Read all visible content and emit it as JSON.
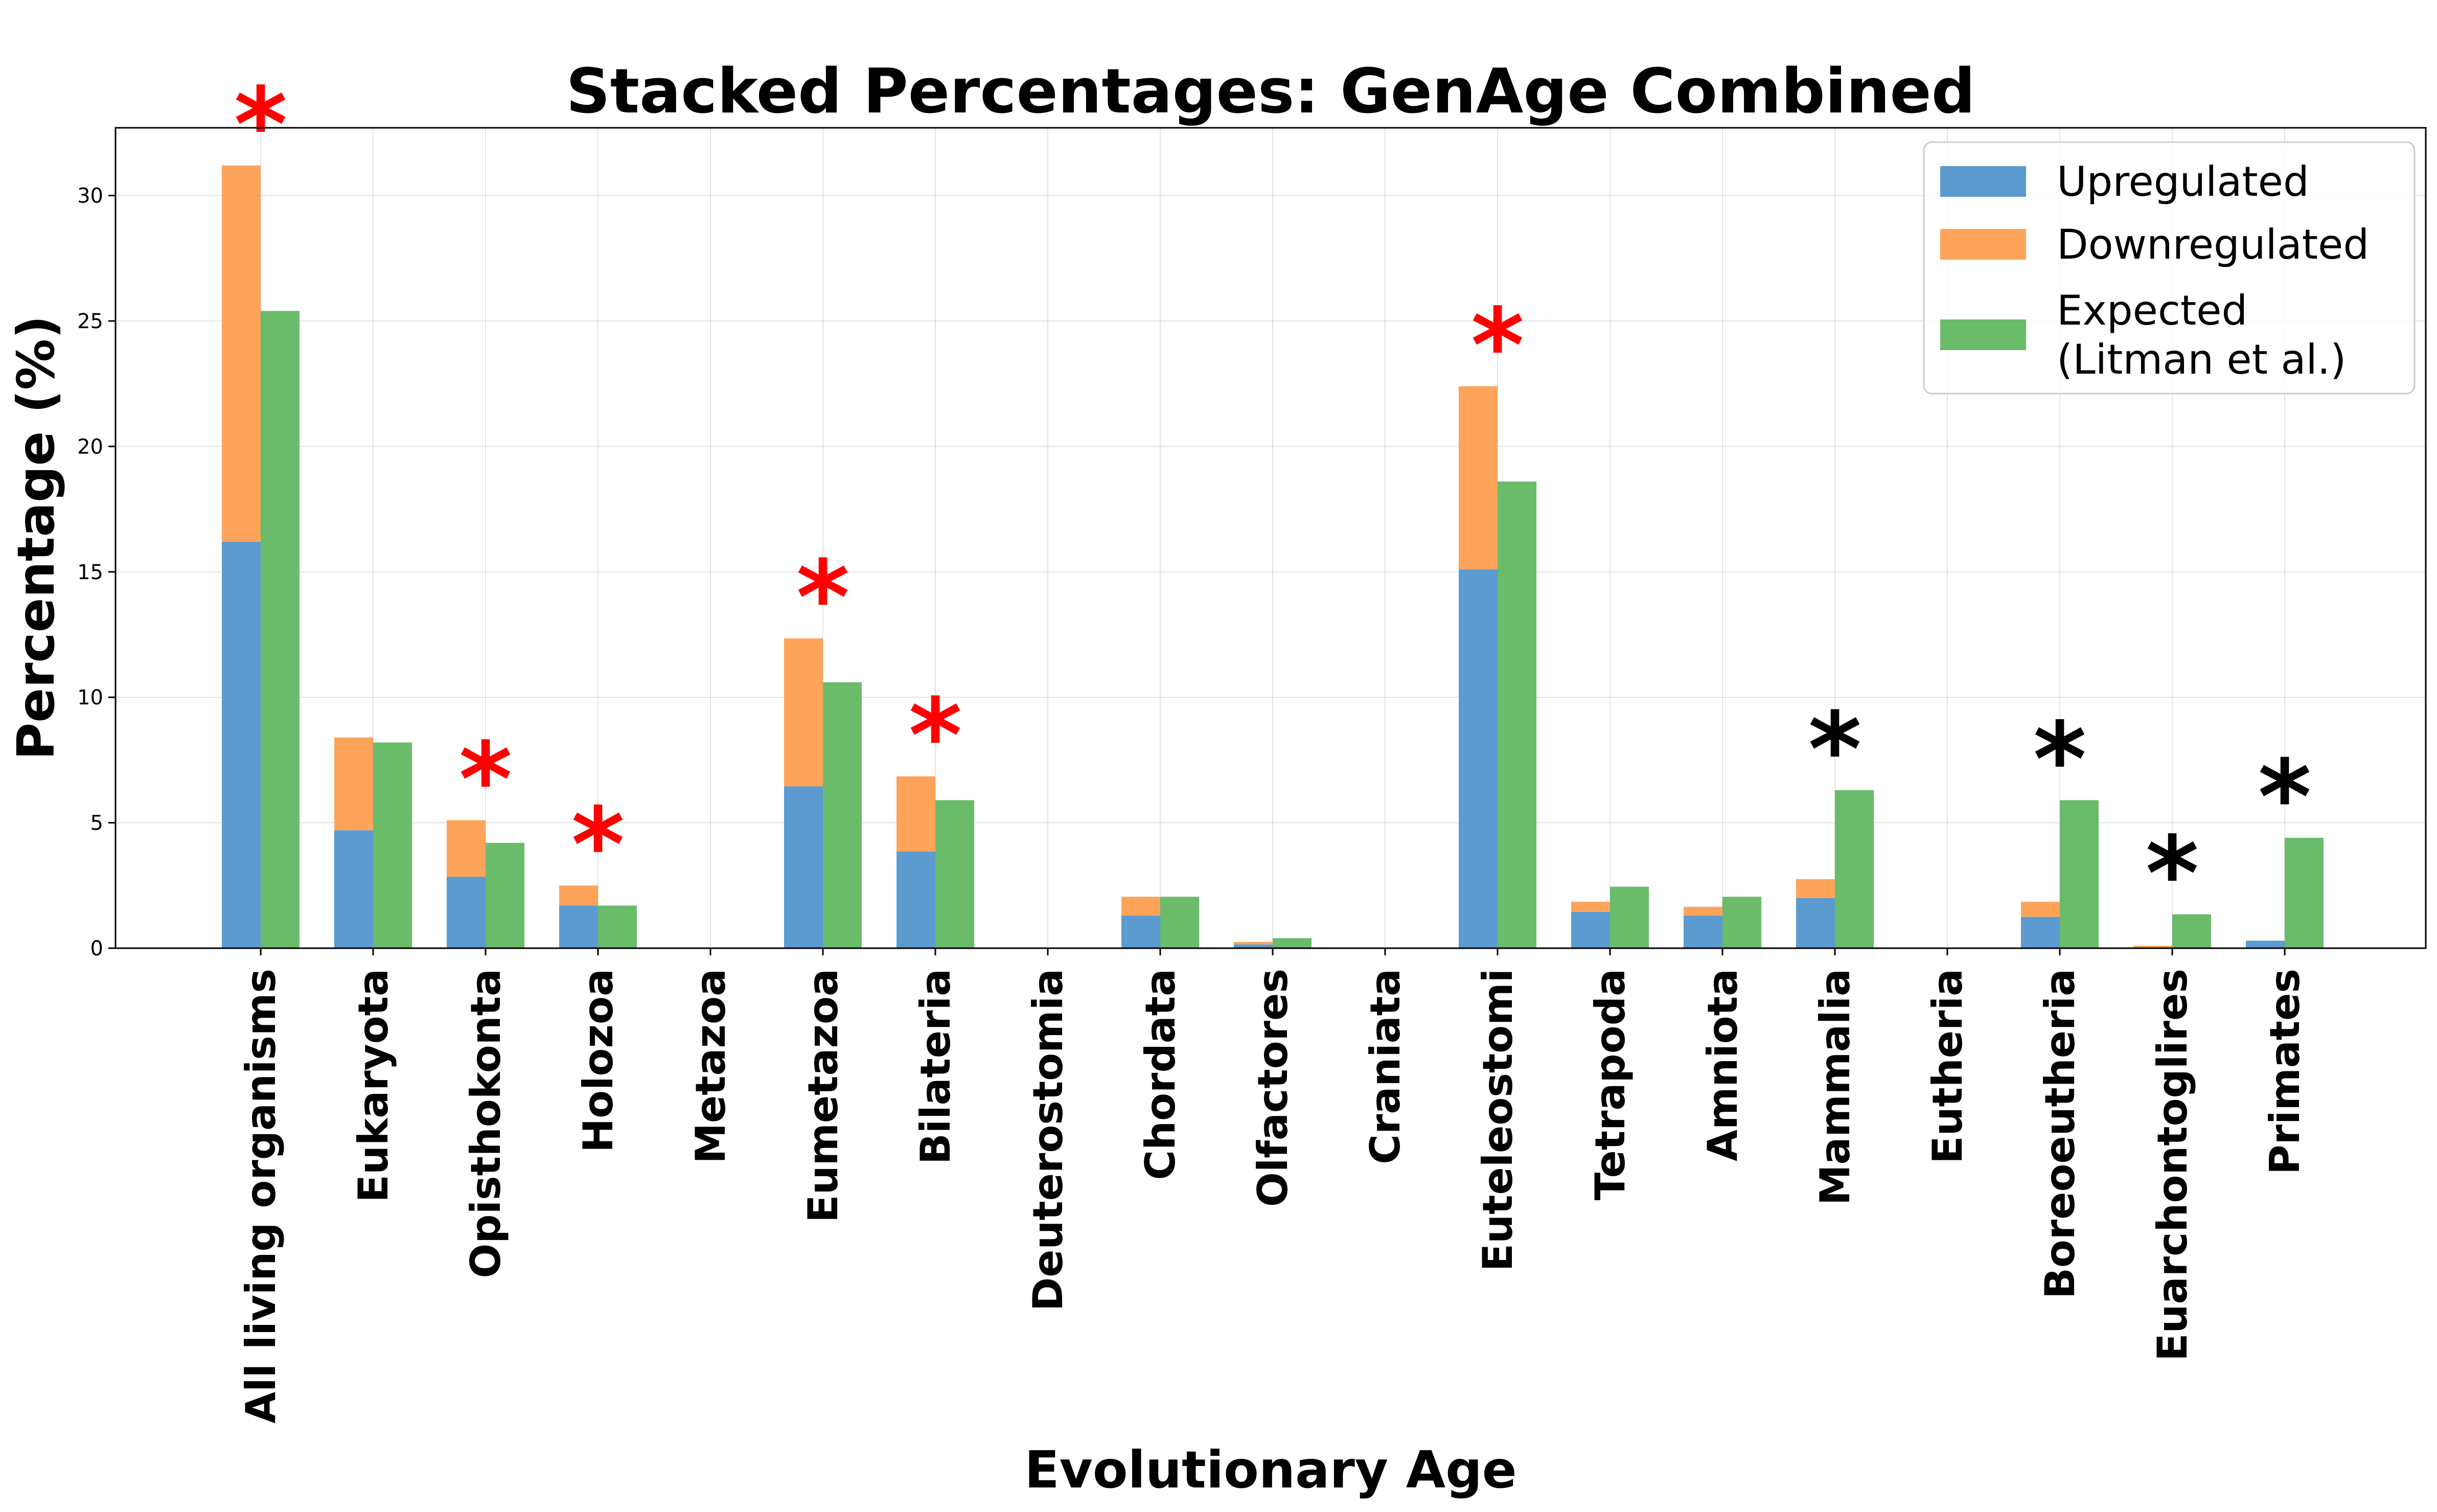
{
  "chart_data": {
    "type": "bar",
    "title": "Stacked Percentages: GenAge Combined",
    "xlabel": "Evolutionary Age",
    "ylabel": "Percentage (%)",
    "ylim": [
      0,
      32.7
    ],
    "yticks": [
      0,
      5,
      10,
      15,
      20,
      25,
      30
    ],
    "grid": true,
    "legend_position": "top-right",
    "categories": [
      "All living organisms",
      "Eukaryota",
      "Opisthokonta",
      "Holozoa",
      "Metazoa",
      "Eumetazoa",
      "Bilateria",
      "Deuterostomia",
      "Chordata",
      "Olfactores",
      "Craniata",
      "Euteleostomi",
      "Tetrapoda",
      "Amniota",
      "Mammalia",
      "Eutheria",
      "Boreoeutheria",
      "Euarchontoglires",
      "Primates"
    ],
    "series": [
      {
        "name": "Upregulated",
        "color": "#5b9bd0",
        "stack": "observed",
        "values": [
          16.2,
          4.7,
          2.85,
          1.7,
          0,
          6.45,
          3.85,
          0,
          1.3,
          0.15,
          0,
          15.1,
          1.45,
          1.3,
          2.0,
          0,
          1.25,
          0,
          0.3
        ]
      },
      {
        "name": "Downregulated",
        "color": "#fda45a",
        "stack": "observed",
        "values": [
          15.0,
          3.7,
          2.25,
          0.8,
          0,
          5.9,
          3.0,
          0,
          0.75,
          0.1,
          0,
          7.3,
          0.4,
          0.35,
          0.75,
          0,
          0.6,
          0.1,
          0
        ]
      },
      {
        "name": "Expected\n(Litman et al.)",
        "color": "#6abb6a",
        "stack": "expected",
        "values": [
          25.4,
          8.2,
          4.2,
          1.7,
          0,
          10.6,
          5.9,
          0,
          2.05,
          0.4,
          0,
          18.6,
          2.45,
          2.05,
          6.3,
          0,
          5.9,
          1.35,
          4.4
        ]
      }
    ],
    "annotations": [
      {
        "category": "All living organisms",
        "text": "*",
        "color": "#ff0000"
      },
      {
        "category": "Opisthokonta",
        "text": "*",
        "color": "#ff0000"
      },
      {
        "category": "Holozoa",
        "text": "*",
        "color": "#ff0000"
      },
      {
        "category": "Eumetazoa",
        "text": "*",
        "color": "#ff0000"
      },
      {
        "category": "Bilateria",
        "text": "*",
        "color": "#ff0000"
      },
      {
        "category": "Euteleostomi",
        "text": "*",
        "color": "#ff0000"
      },
      {
        "category": "Mammalia",
        "text": "*",
        "color": "#000000"
      },
      {
        "category": "Boreoeutheria",
        "text": "*",
        "color": "#000000"
      },
      {
        "category": "Euarchontoglires",
        "text": "*",
        "color": "#000000"
      },
      {
        "category": "Primates",
        "text": "*",
        "color": "#000000"
      }
    ]
  }
}
